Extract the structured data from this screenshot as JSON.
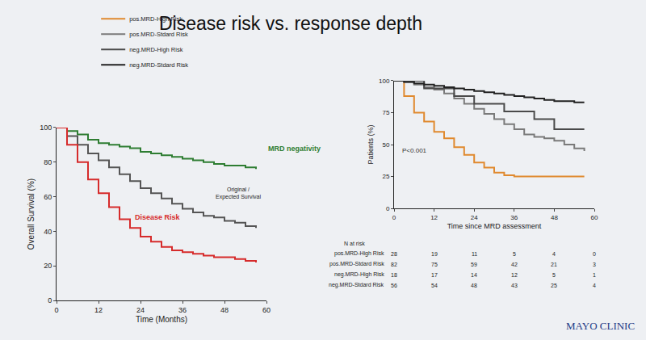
{
  "title": "Disease risk vs. response depth",
  "logo": "MAYO CLINIC",
  "chart_data": [
    {
      "type": "line",
      "line_style": "step",
      "grid": false,
      "x_label": "Time (Months)",
      "y_label": "Overall Survival (%)",
      "xlim": [
        0,
        60
      ],
      "xticks": [
        0,
        12,
        24,
        36,
        48,
        60
      ],
      "ylim": [
        0,
        100
      ],
      "yticks": [
        0,
        20,
        40,
        60,
        80,
        100
      ],
      "x": [
        0,
        3,
        6,
        9,
        12,
        15,
        18,
        21,
        24,
        27,
        30,
        33,
        36,
        39,
        42,
        45,
        48,
        51,
        54,
        57
      ],
      "series": [
        {
          "name": "MRD negativity",
          "color": "#2e7d32",
          "values": [
            100,
            98,
            96,
            93,
            91,
            90,
            89,
            88,
            86,
            85,
            84,
            83,
            82,
            81,
            80,
            79,
            78,
            78,
            77,
            76
          ]
        },
        {
          "name": "Original / Expected Survival",
          "color": "#555555",
          "values": [
            100,
            95,
            90,
            85,
            81,
            77,
            73,
            69,
            65,
            62,
            59,
            56,
            53,
            51,
            49,
            48,
            46,
            45,
            43,
            42
          ]
        },
        {
          "name": "Disease Risk",
          "color": "#d62b2b",
          "values": [
            100,
            90,
            80,
            70,
            62,
            54,
            47,
            42,
            37,
            34,
            31,
            29,
            28,
            27,
            26,
            25,
            25,
            24,
            23,
            22
          ]
        }
      ]
    },
    {
      "type": "line",
      "line_style": "step",
      "grid": false,
      "legend": "top",
      "x_label": "Time since MRD assessment",
      "y_label": "Patients (%)",
      "annotations": [
        "P<0.001"
      ],
      "xlim": [
        0,
        60
      ],
      "xticks": [
        0,
        12,
        24,
        36,
        48,
        60
      ],
      "ylim": [
        0,
        100
      ],
      "yticks": [
        0,
        25,
        50,
        75,
        100
      ],
      "x": [
        0,
        3,
        6,
        9,
        12,
        15,
        18,
        21,
        24,
        27,
        30,
        33,
        36,
        39,
        42,
        45,
        48,
        51,
        54,
        57
      ],
      "series": [
        {
          "name": "pos.MRD-High Risk",
          "color": "#e0892e",
          "values": [
            100,
            88,
            75,
            68,
            60,
            55,
            48,
            42,
            36,
            32,
            28,
            26,
            25,
            25,
            25,
            25,
            25,
            25,
            25,
            25
          ]
        },
        {
          "name": "pos.MRD-Stdard Risk",
          "color": "#7a7a7a",
          "values": [
            100,
            99,
            97,
            95,
            93,
            90,
            86,
            82,
            78,
            74,
            70,
            66,
            62,
            58,
            56,
            55,
            53,
            50,
            47,
            45
          ]
        },
        {
          "name": "neg.MRD-High Risk",
          "color": "#4a4a4a",
          "values": [
            100,
            100,
            100,
            94,
            94,
            94,
            88,
            88,
            82,
            82,
            82,
            76,
            76,
            76,
            70,
            70,
            62,
            62,
            62,
            62
          ]
        },
        {
          "name": "neg.MRD-Stdard Risk",
          "color": "#222222",
          "values": [
            100,
            99,
            98,
            97,
            96,
            95,
            94,
            93,
            92,
            91,
            90,
            89,
            88,
            87,
            86,
            85,
            84,
            84,
            83,
            83
          ]
        }
      ],
      "at_risk": {
        "title": "N at risk",
        "x": [
          0,
          12,
          24,
          36,
          48,
          60
        ],
        "rows": [
          {
            "name": "pos.MRD-High Risk",
            "values": [
              28,
              19,
              11,
              5,
              4,
              0
            ]
          },
          {
            "name": "pos.MRD-Stdard Risk",
            "values": [
              82,
              75,
              59,
              42,
              21,
              3
            ]
          },
          {
            "name": "neg.MRD-High Risk",
            "values": [
              18,
              17,
              14,
              12,
              5,
              1
            ]
          },
          {
            "name": "neg.MRD-Stdard Risk",
            "values": [
              56,
              54,
              48,
              43,
              25,
              4
            ]
          }
        ]
      }
    }
  ]
}
